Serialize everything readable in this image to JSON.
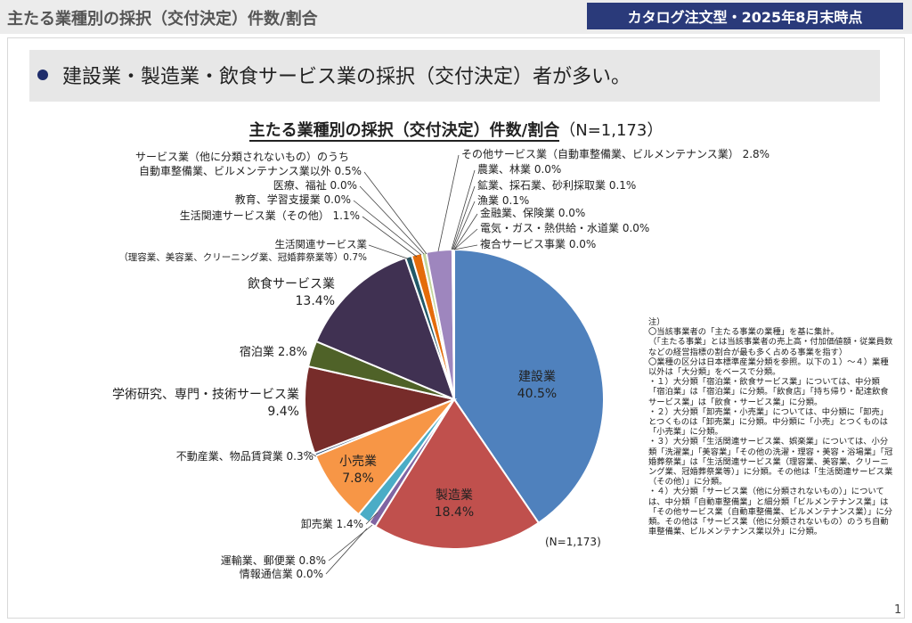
{
  "header": {
    "title": "主たる業種別の採択（交付決定）件数/割合",
    "badge": "カタログ注文型・2025年8月末時点"
  },
  "summary": "建設業・製造業・飲食サービス業の採択（交付決定）者が多い。",
  "chart_title": "主たる業種別の採択（交付決定）件数/割合",
  "chart_title_n": "（N=1,173）",
  "page_number": "1",
  "chart_data": {
    "type": "pie",
    "title": "主たる業種別の採択（交付決定）件数/割合（N=1,173）",
    "n_label": "(N=1,173)",
    "start": "12 o'clock, clockwise",
    "slices": [
      {
        "name": "建設業",
        "value": 40.5,
        "pct": "40.5%",
        "color": "#4f81bd",
        "inside": true
      },
      {
        "name": "製造業",
        "value": 18.4,
        "pct": "18.4%",
        "color": "#c0504d",
        "inside": true
      },
      {
        "name": "情報通信業",
        "value": 0.0,
        "pct": "0.0%",
        "color": "#9bbb59",
        "inside": false
      },
      {
        "name": "運輸業、郵便業",
        "value": 0.8,
        "pct": "0.8%",
        "color": "#8064a2",
        "inside": false
      },
      {
        "name": "卸売業",
        "value": 1.4,
        "pct": "1.4%",
        "color": "#4bacc6",
        "inside": false
      },
      {
        "name": "小売業",
        "value": 7.8,
        "pct": "7.8%",
        "color": "#f79646",
        "inside": true
      },
      {
        "name": "不動産業、物品賃貸業",
        "value": 0.3,
        "pct": "0.3%",
        "color": "#2c4d75",
        "inside": false
      },
      {
        "name": "学術研究、専門・技術サービス業",
        "value": 9.4,
        "pct": "9.4%",
        "color": "#772c2a",
        "inside": false
      },
      {
        "name": "宿泊業",
        "value": 2.8,
        "pct": "2.8%",
        "color": "#4f6228",
        "inside": false
      },
      {
        "name": "飲食サービス業",
        "value": 13.4,
        "pct": "13.4%",
        "color": "#403152",
        "inside": false
      },
      {
        "name": "生活関連サービス業（理容業、美容業、クリーニング業、冠婚葬祭業等）",
        "value": 0.7,
        "pct": "0.7%",
        "color": "#215968",
        "inside": false
      },
      {
        "name": "生活関連サービス業（その他）",
        "value": 1.1,
        "pct": "1.1%",
        "color": "#e46c0a",
        "inside": false
      },
      {
        "name": "教育、学習支援業",
        "value": 0.0,
        "pct": "0.0%",
        "color": "#95b3d7",
        "inside": false
      },
      {
        "name": "医療、福祉",
        "value": 0.0,
        "pct": "0.0%",
        "color": "#d99694",
        "inside": false
      },
      {
        "name": "自動車整備業、ビルメンテナンス業以外",
        "value": 0.5,
        "pct": "0.5%",
        "color": "#c3d69b",
        "inside": false
      },
      {
        "name": "サービス業（他に分類されないもの）のうち",
        "value": 0.0,
        "pct": "",
        "color": "#b2a2c7",
        "inside": false
      },
      {
        "name": "その他サービス業（自動車整備業、ビルメンテナンス業）",
        "value": 2.8,
        "pct": "2.8%",
        "color": "#9e86be",
        "inside": false
      },
      {
        "name": "農業、林業",
        "value": 0.0,
        "pct": "0.0%",
        "color": "#6a9a3a",
        "inside": false
      },
      {
        "name": "鉱業、採石業、砂利採取業",
        "value": 0.1,
        "pct": "0.1%",
        "color": "#8eb4e3",
        "inside": false
      },
      {
        "name": "漁業",
        "value": 0.1,
        "pct": "0.1%",
        "color": "#4aacc5",
        "inside": false
      },
      {
        "name": "金融業、保険業",
        "value": 0.0,
        "pct": "0.0%",
        "color": "#31859c",
        "inside": false
      },
      {
        "name": "電気・ガス・熱供給・水道業",
        "value": 0.0,
        "pct": "0.0%",
        "color": "#b7dee8",
        "inside": false
      },
      {
        "name": "複合サービス事業",
        "value": 0.0,
        "pct": "0.0%",
        "color": "#fac090",
        "inside": false
      }
    ],
    "callouts": [
      {
        "ref": 0,
        "lines": [
          "建設業",
          "40.5%"
        ]
      },
      {
        "ref": 1,
        "lines": [
          "製造業",
          "18.4%"
        ]
      },
      {
        "ref": 2,
        "lines": [
          "情報通信業 0.0%"
        ]
      },
      {
        "ref": 3,
        "lines": [
          "運輸業、郵便業 0.8%"
        ]
      },
      {
        "ref": 4,
        "lines": [
          "卸売業 1.4%"
        ]
      },
      {
        "ref": 5,
        "lines": [
          "小売業",
          "7.8%"
        ]
      },
      {
        "ref": 6,
        "lines": [
          "不動産業、物品賃貸業 0.3%"
        ]
      },
      {
        "ref": 7,
        "lines": [
          "学術研究、専門・技術サービス業",
          "9.4%"
        ]
      },
      {
        "ref": 8,
        "lines": [
          "宿泊業 2.8%"
        ]
      },
      {
        "ref": 9,
        "lines": [
          "飲食サービス業",
          "13.4%"
        ]
      },
      {
        "ref": 10,
        "lines": [
          "生活関連サービス業",
          "（理容業、美容業、クリーニング業、冠婚葬祭業等）0.7%"
        ]
      },
      {
        "ref": 11,
        "lines": [
          "生活関連サービス業（その他） 1.1%"
        ]
      },
      {
        "ref": 12,
        "lines": [
          "教育、学習支援業 0.0%"
        ]
      },
      {
        "ref": 13,
        "lines": [
          "医療、福祉 0.0%"
        ]
      },
      {
        "ref": 14,
        "lines": [
          "自動車整備業、ビルメンテナンス業以外 0.5%"
        ]
      },
      {
        "ref": 15,
        "lines": [
          "サービス業（他に分類されないもの）のうち"
        ]
      },
      {
        "ref": 16,
        "lines": [
          "その他サービス業（自動車整備業、ビルメンテナンス業） 2.8%"
        ]
      },
      {
        "ref": 17,
        "lines": [
          "農業、林業 0.0%"
        ]
      },
      {
        "ref": 18,
        "lines": [
          "鉱業、採石業、砂利採取業 0.1%"
        ]
      },
      {
        "ref": 19,
        "lines": [
          "漁業 0.1%"
        ]
      },
      {
        "ref": 20,
        "lines": [
          "金融業、保険業 0.0%"
        ]
      },
      {
        "ref": 21,
        "lines": [
          "電気・ガス・熱供給・水道業 0.0%"
        ]
      },
      {
        "ref": 22,
        "lines": [
          "複合サービス事業 0.0%"
        ]
      }
    ]
  },
  "notes": [
    "注）",
    "〇当該事業者の「主たる事業の業種」を基に集計。",
    "（「主たる事業」とは当該事業者の売上高・付加価値額・従業員数などの経営指標の割合が最も多く占める事業を指す）",
    "〇業種の区分は日本標準産業分類を参照。以下の１）～４）業種以外は「大分類」をベースで分類。",
    "・１）大分類「宿泊業・飲食サービス業」については、中分類「宿泊業」は「宿泊業」に分類。「飲食店」「持ち帰り・配達飲食サービス業」は「飲食・サービス業」に分類。",
    "・２）大分類「卸売業・小売業」については、中分類に「卸売」とつくものは「卸売業」に分類。中分類に「小売」とつくものは「小売業」に分類。",
    "・３）大分類「生活関連サービス業、娯楽業」については、小分類「洗濯業」「美容業」「その他の洗濯・理容・美容・浴場業」「冠婚葬祭業」は「生活関連サービス業（理容業、美容業、クリーニング業、冠婚葬祭業等）」に分類。その他は「生活関連サービス業（その他）」に分類。",
    "・４）大分類「サービス業（他に分類されないもの）」については、中分類「自動車整備業」と細分類「ビルメンテナンス業」は「その他サービス業（自動車整備業、ビルメンテナンス業）」に分類。その他は「サービス業（他に分類されないもの）のうち自動車整備業、ビルメンテナンス業以外」に分類。"
  ]
}
